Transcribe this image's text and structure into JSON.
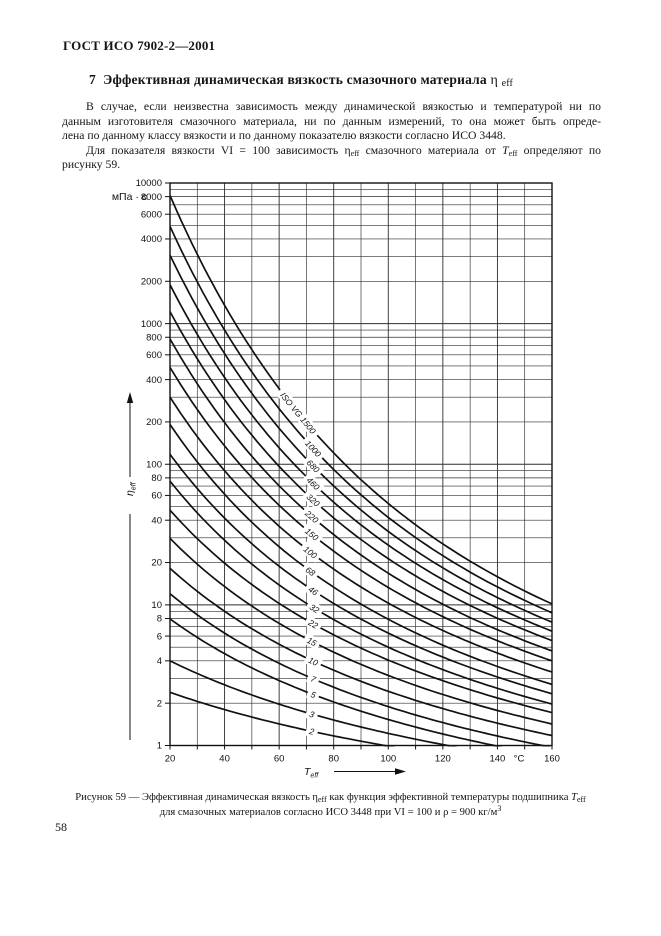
{
  "page": {
    "header": "ГОСТ ИСО 7902-2—2001",
    "page_number": "58"
  },
  "section": {
    "heading_main": "7  Эффективная динамическая вязкость смазочного материала ",
    "heading_symbol": "η",
    "heading_sub": "eff"
  },
  "body": {
    "p1": {
      "l1": "В случае, если неизвестна зависимость между динамической вязкостью и температурой ни по",
      "l2": "данным изготовителя смазочного материала, ни по данным измерений, то она может быть опреде-",
      "l3": "лена по данному классу вязкости и по данному показателю вязкости согласно ИСО 3448."
    },
    "p2": {
      "a": "Для показателя вязкости VI = 100 зависимость η",
      "sub1": "eff",
      "b": " смазочного материала от ",
      "t": "T",
      "sub2": "eff",
      "c": " определяют по",
      "l2": "рисунку 59."
    }
  },
  "caption": {
    "p1": "Рисунок 59 — Эффективная динамическая вязкость η",
    "sub1": "eff",
    "p2": " как функция эффективной температуры подшипника ",
    "t": "T",
    "sub2": "eff",
    "p3": " для смазочных материалов согласно ИСО 3448 при VI = 100 и ρ = 900 кг/м",
    "sup": "3"
  },
  "chart_data": {
    "type": "line",
    "title": "",
    "xlabel": "T_eff",
    "ylabel": "η_eff",
    "y_unit": "мПа · с",
    "x_unit": "°C",
    "x_scale": "linear",
    "y_scale": "log",
    "xlim": [
      20,
      160
    ],
    "ylim": [
      1,
      10000
    ],
    "x_tick_labels": [
      "20",
      "40",
      "60",
      "80",
      "100",
      "120",
      "140",
      "160"
    ],
    "y_tick_labels": [
      "10000",
      "8000",
      "6000",
      "4000",
      "2000",
      "1000",
      "800",
      "600",
      "400",
      "200",
      "100",
      "80",
      "60",
      "40",
      "20",
      "10",
      "8",
      "6",
      "4",
      "2",
      "1"
    ],
    "grid": "minor vertical line every 10 °C; horizontal log grid at every 1–9 mantissa of each decade",
    "legend_position": "labels on curves",
    "series_note": "ISO 3448 viscosity grades, VI = 100, ρ = 900 kg/m³; eta values in mPa·s at 40 °C and 100 °C read from the chart",
    "series": [
      {
        "label": "ISO VG 1500",
        "vg": 1500,
        "eta40": 1350,
        "eta100": 52.6,
        "label_T": 67
      },
      {
        "label": "1000",
        "vg": 1000,
        "eta40": 900,
        "eta100": 41.9,
        "label_T": 72.5
      },
      {
        "label": "680",
        "vg": 680,
        "eta40": 612,
        "eta100": 33.3,
        "label_T": 72.5
      },
      {
        "label": "460",
        "vg": 460,
        "eta40": 414,
        "eta100": 26.6,
        "label_T": 72.5
      },
      {
        "label": "320",
        "vg": 320,
        "eta40": 288,
        "eta100": 21.3,
        "label_T": 72.5
      },
      {
        "label": "220",
        "vg": 220,
        "eta40": 198,
        "eta100": 16.8,
        "label_T": 72
      },
      {
        "label": "150",
        "vg": 150,
        "eta40": 135,
        "eta100": 13.3,
        "label_T": 72
      },
      {
        "label": "100",
        "vg": 100,
        "eta40": 90,
        "eta100": 10.3,
        "label_T": 71.5
      },
      {
        "label": "68",
        "vg": 68,
        "eta40": 61.2,
        "eta100": 7.9,
        "label_T": 71.5
      },
      {
        "label": "46",
        "vg": 46,
        "eta40": 41.4,
        "eta100": 6.3,
        "label_T": 72.5
      },
      {
        "label": "32",
        "vg": 32,
        "eta40": 28.8,
        "eta100": 5.0,
        "label_T": 73
      },
      {
        "label": "22",
        "vg": 22,
        "eta40": 19.8,
        "eta100": 4.05,
        "label_T": 72.5
      },
      {
        "label": "15",
        "vg": 15,
        "eta40": 13.5,
        "eta100": 3.15,
        "label_T": 72
      },
      {
        "label": "10",
        "vg": 10,
        "eta40": 9.0,
        "eta100": 2.43,
        "label_T": 72.5
      },
      {
        "label": "7",
        "vg": 7,
        "eta40": 6.3,
        "eta100": 1.89,
        "label_T": 72.5
      },
      {
        "label": "5",
        "vg": 5,
        "eta40": 4.5,
        "eta100": 1.53,
        "label_T": 72.5
      },
      {
        "label": "3",
        "vg": 3,
        "eta40": 2.7,
        "eta100": 1.22,
        "label_T": 72
      },
      {
        "label": "2",
        "vg": 2,
        "eta40": 1.8,
        "eta100": 0.99,
        "label_T": 72
      }
    ]
  }
}
